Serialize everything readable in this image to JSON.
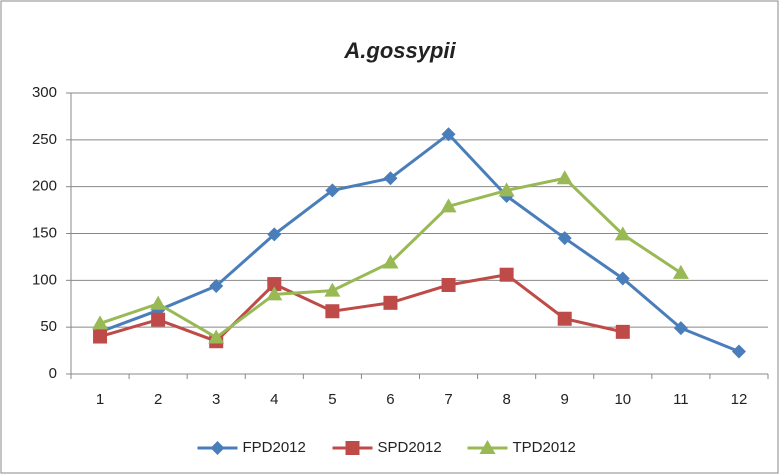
{
  "chart_data": {
    "type": "line",
    "title": "A.gossypii",
    "categories": [
      "1",
      "2",
      "3",
      "4",
      "5",
      "6",
      "7",
      "8",
      "9",
      "10",
      "11",
      "12"
    ],
    "series": [
      {
        "name": "FPD2012",
        "color": "#4a7ebb",
        "marker": "diamond",
        "values": [
          45,
          68,
          94,
          149,
          196,
          209,
          256,
          190,
          145,
          102,
          49,
          24
        ]
      },
      {
        "name": "SPD2012",
        "color": "#be4b48",
        "marker": "square",
        "values": [
          40,
          58,
          35,
          96,
          67,
          76,
          95,
          106,
          59,
          45,
          null,
          null
        ]
      },
      {
        "name": "TPD2012",
        "color": "#98b954",
        "marker": "triangle",
        "values": [
          54,
          75,
          39,
          85,
          89,
          119,
          179,
          196,
          209,
          149,
          108,
          null
        ]
      }
    ],
    "ylim": [
      0,
      300
    ],
    "yticks": [
      0,
      50,
      100,
      150,
      200,
      250,
      300
    ],
    "grid": true,
    "legend": "bottom"
  }
}
